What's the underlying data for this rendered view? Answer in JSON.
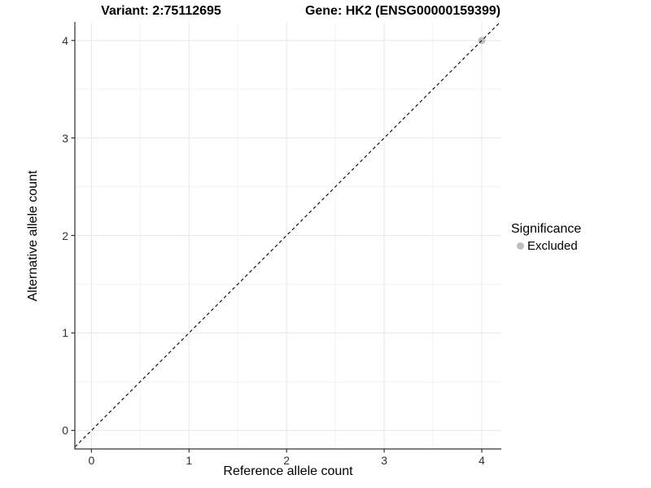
{
  "titles": {
    "variant": "Variant: 2:75112695",
    "gene": "Gene: HK2 (ENSG00000159399)"
  },
  "chart_data": {
    "type": "scatter",
    "title": "Variant: 2:75112695   Gene: HK2 (ENSG00000159399)",
    "xlabel": "Reference allele count",
    "ylabel": "Alternative allele count",
    "xlim": [
      -0.17,
      4.2
    ],
    "ylim": [
      -0.19,
      4.19
    ],
    "xticks": [
      0,
      1,
      2,
      3,
      4
    ],
    "yticks": [
      0,
      1,
      2,
      3,
      4
    ],
    "x_minor": [
      0.5,
      1.5,
      2.5,
      3.5
    ],
    "y_minor": [
      0.5,
      1.5,
      2.5,
      3.5
    ],
    "grid": true,
    "points": [
      {
        "x": 4,
        "y": 4,
        "series": "Excluded",
        "color": "#bebebe"
      }
    ],
    "abline": {
      "intercept": 0,
      "slope": 1,
      "linetype": "dashed",
      "color": "#000000"
    },
    "legend": {
      "title": "Significance",
      "position": "right",
      "items": [
        {
          "label": "Excluded",
          "color": "#bebebe"
        }
      ]
    }
  },
  "colors": {
    "background": "#ffffff",
    "grid_major": "#ebebeb",
    "grid_minor": "#f2f2f2",
    "axis_line": "#555555",
    "tick_mark": "#333333",
    "tick_text": "#333333",
    "point": "#bebebe",
    "dashed_line": "#000000"
  }
}
